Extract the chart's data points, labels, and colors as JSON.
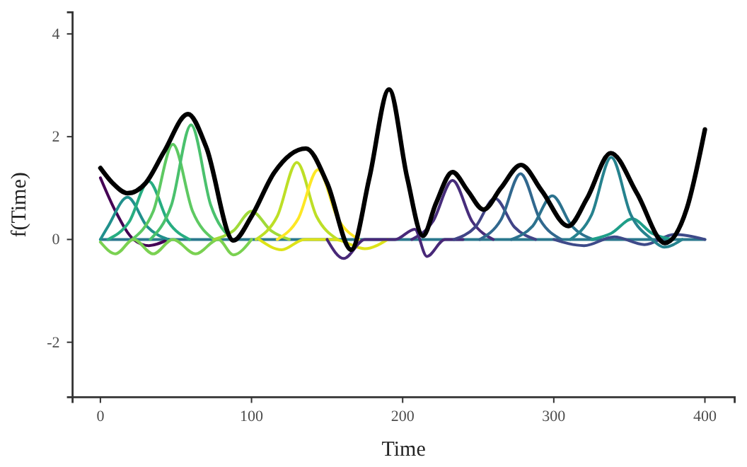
{
  "chart_data": {
    "type": "line",
    "xlabel": "Time",
    "ylabel": "f(Time)",
    "xlim": [
      -18.4,
      419.7
    ],
    "ylim": [
      -3.07,
      4.42
    ],
    "xticks": [
      0,
      100,
      200,
      300,
      400
    ],
    "yticks": [
      -2,
      0,
      2,
      4
    ],
    "grid": false,
    "marker": "none",
    "line_style": "solid",
    "series": [
      {
        "color": "#2a788e",
        "x": [
          0,
          400
        ],
        "values": [
          0,
          0
        ]
      },
      {
        "color": "#440154",
        "x": [
          0,
          10,
          22,
          32,
          45
        ],
        "values": [
          1.2,
          0.55,
          0,
          -0.12,
          0
        ]
      },
      {
        "color": "#21908c",
        "x": [
          0,
          5,
          18,
          31,
          45
        ],
        "values": [
          0,
          0.25,
          0.82,
          0.25,
          0
        ]
      },
      {
        "color": "#27ad81",
        "x": [
          5,
          19,
          32,
          45,
          59
        ],
        "values": [
          0,
          0.34,
          1.13,
          0.34,
          0
        ]
      },
      {
        "color": "#5ec962",
        "x": [
          21,
          35,
          48,
          61,
          75
        ],
        "values": [
          0,
          0.55,
          1.85,
          0.55,
          0
        ]
      },
      {
        "color": "#4ac16d",
        "x": [
          33,
          47,
          60,
          73,
          87
        ],
        "values": [
          0,
          0.67,
          2.23,
          0.67,
          0
        ]
      },
      {
        "color": "#7ad151",
        "x": [
          0,
          10,
          22,
          35,
          48,
          63,
          78,
          88,
          100
        ],
        "values": [
          -0.05,
          -0.28,
          0,
          -0.28,
          0,
          -0.28,
          0,
          -0.3,
          0
        ]
      },
      {
        "color": "#a0da39",
        "x": [
          75,
          88,
          100,
          113,
          125
        ],
        "values": [
          0,
          0.17,
          0.55,
          0.17,
          0
        ]
      },
      {
        "color": "#bddf26",
        "x": [
          103,
          117,
          130,
          143,
          157
        ],
        "values": [
          0,
          0.45,
          1.5,
          0.45,
          0
        ]
      },
      {
        "color": "#fde725",
        "x": [
          117,
          131,
          144,
          157,
          171
        ],
        "values": [
          0,
          0.41,
          1.36,
          0.41,
          0
        ]
      },
      {
        "color": "#dde318",
        "x": [
          105,
          120,
          135,
          155,
          175,
          190
        ],
        "values": [
          0,
          -0.2,
          0,
          0,
          -0.18,
          0
        ]
      },
      {
        "color": "#482878",
        "x": [
          150,
          161,
          175,
          195,
          208,
          216,
          228,
          240
        ],
        "values": [
          0,
          -0.37,
          0,
          0,
          0.2,
          -0.33,
          0,
          0
        ]
      },
      {
        "color": "#472d7b",
        "x": [
          206,
          220,
          233,
          246,
          260
        ],
        "values": [
          0,
          0.35,
          1.15,
          0.35,
          0
        ]
      },
      {
        "color": "#414487",
        "x": [
          234,
          248,
          261,
          274,
          288
        ],
        "values": [
          0,
          0.24,
          0.8,
          0.24,
          0
        ]
      },
      {
        "color": "#31688e",
        "x": [
          251,
          265,
          278,
          291,
          305
        ],
        "values": [
          0,
          0.38,
          1.28,
          0.38,
          0
        ]
      },
      {
        "color": "#2c728e",
        "x": [
          272,
          286,
          299,
          312,
          326
        ],
        "values": [
          0,
          0.26,
          0.85,
          0.26,
          0
        ]
      },
      {
        "color": "#3e4a89",
        "x": [
          300,
          320,
          340,
          360,
          380,
          400
        ],
        "values": [
          0,
          -0.12,
          0.05,
          -0.1,
          0.1,
          0
        ]
      },
      {
        "color": "#1f9e89",
        "x": [
          325,
          338,
          352,
          365,
          379
        ],
        "values": [
          0,
          0.12,
          0.4,
          0.12,
          0
        ]
      },
      {
        "color": "#26828e",
        "x": [
          311,
          325,
          338,
          351,
          365,
          373,
          385
        ],
        "values": [
          0,
          0.48,
          1.6,
          0.48,
          0,
          -0.15,
          0
        ]
      },
      {
        "color": "#000000",
        "x": [
          0,
          8,
          18,
          30,
          42,
          58,
          70,
          88,
          100,
          115,
          136,
          150,
          166,
          178,
          191,
          203,
          213.4,
          222,
          233,
          243,
          253.5,
          265,
          278.3,
          292,
          309.6,
          322,
          337.7,
          355,
          373.5,
          388,
          400
        ],
        "values": [
          1.39,
          1.1,
          0.9,
          1.1,
          1.7,
          2.44,
          1.8,
          -0.02,
          0.45,
          1.3,
          1.77,
          1.1,
          -0.2,
          1.2,
          2.92,
          1.2,
          0.07,
          0.7,
          1.31,
          0.95,
          0.58,
          1.0,
          1.45,
          0.95,
          0.26,
          0.8,
          1.68,
          0.9,
          -0.07,
          0.6,
          2.14
        ]
      }
    ]
  }
}
